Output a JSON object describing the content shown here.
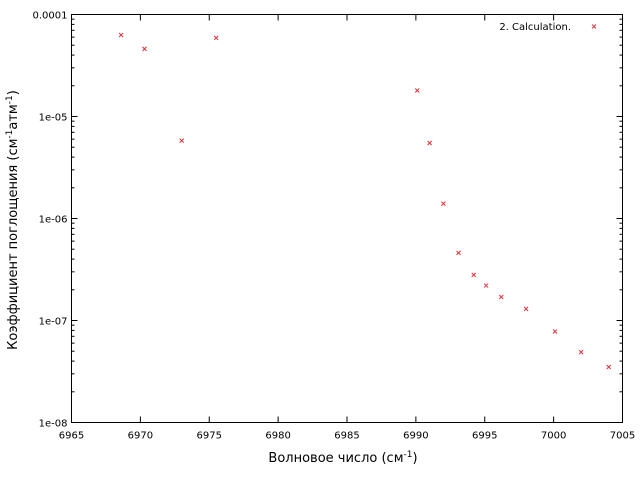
{
  "chart_data": {
    "type": "scatter",
    "xlabel": "Волновое число (см",
    "xlabel_sup": "-1",
    "xlabel_tail": ")",
    "ylabel_parts": [
      {
        "text": "Коэффициент поглощения (см"
      },
      {
        "text": "-1",
        "sup": true
      },
      {
        "text": "атм"
      },
      {
        "text": "-1",
        "sup": true
      },
      {
        "text": ")"
      }
    ],
    "xlim": [
      6965,
      7005
    ],
    "ylim": [
      1e-08,
      0.0001
    ],
    "yscale": "log",
    "grid": false,
    "legend_position": "top-right",
    "x_ticks": [
      6965,
      6970,
      6975,
      6980,
      6985,
      6990,
      6995,
      7000,
      7005
    ],
    "x_tick_labels": [
      "6965",
      "6970",
      "6975",
      "6980",
      "6985",
      "6990",
      "6995",
      "7000",
      "7005"
    ],
    "y_ticks": [
      1e-08,
      1e-07,
      1e-06,
      1e-05,
      0.0001
    ],
    "y_tick_labels": [
      "1e-08",
      "1e-07",
      "1e-06",
      "1e-05",
      "0.0001"
    ],
    "series": [
      {
        "name": "2. Calculation.",
        "color": "#e8303a",
        "marker": "x",
        "points": [
          {
            "x": 6968.6,
            "y": 6.3e-05
          },
          {
            "x": 6970.3,
            "y": 4.6e-05
          },
          {
            "x": 6973.0,
            "y": 5.8e-06
          },
          {
            "x": 6975.5,
            "y": 5.9e-05
          },
          {
            "x": 6990.1,
            "y": 1.8e-05
          },
          {
            "x": 6991.0,
            "y": 5.5e-06
          },
          {
            "x": 6992.0,
            "y": 1.4e-06
          },
          {
            "x": 6993.1,
            "y": 4.6e-07
          },
          {
            "x": 6994.2,
            "y": 2.8e-07
          },
          {
            "x": 6995.1,
            "y": 2.2e-07
          },
          {
            "x": 6996.2,
            "y": 1.7e-07
          },
          {
            "x": 6998.0,
            "y": 1.3e-07
          },
          {
            "x": 7000.1,
            "y": 7.8e-08
          },
          {
            "x": 7002.0,
            "y": 4.9e-08
          },
          {
            "x": 7004.0,
            "y": 3.5e-08
          }
        ]
      }
    ]
  }
}
